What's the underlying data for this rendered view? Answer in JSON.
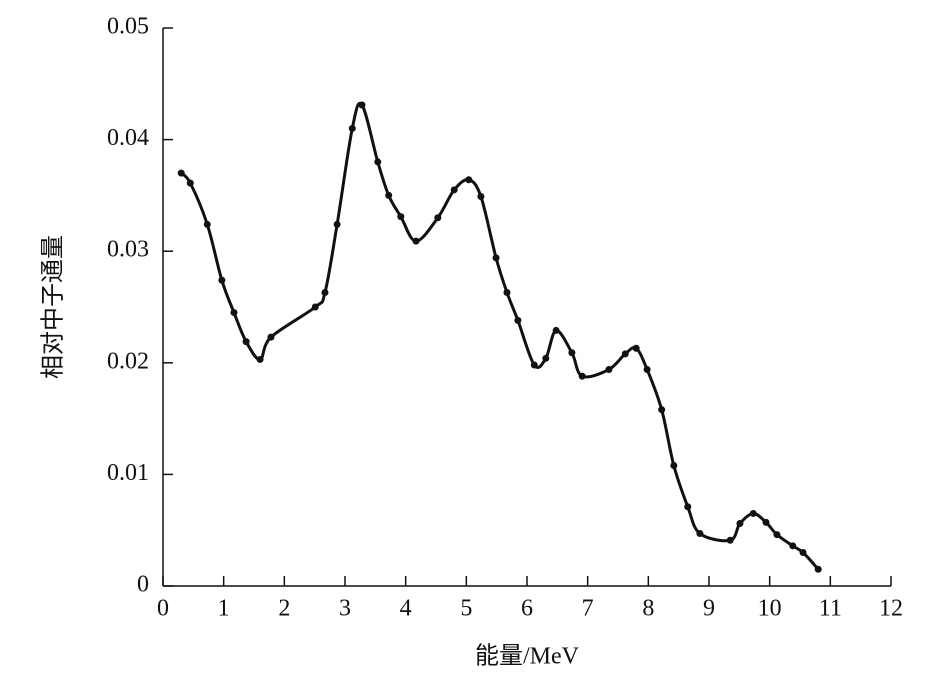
{
  "chart_data": {
    "type": "scatter",
    "line": true,
    "color": "#111111",
    "x_label": "能量/MeV",
    "y_label": "相对中子通量",
    "x": [
      0.3,
      0.45,
      0.73,
      0.97,
      1.17,
      1.37,
      1.6,
      1.78,
      2.51,
      2.67,
      2.87,
      3.12,
      3.28,
      3.54,
      3.72,
      3.92,
      4.17,
      4.53,
      4.8,
      5.04,
      5.24,
      5.49,
      5.67,
      5.85,
      6.12,
      6.31,
      6.48,
      6.74,
      6.91,
      7.35,
      7.62,
      7.8,
      7.98,
      8.22,
      8.42,
      8.65,
      8.85,
      9.35,
      9.51,
      9.73,
      9.94,
      10.12,
      10.38,
      10.55,
      10.8
    ],
    "values": [
      0.037,
      0.0361,
      0.0324,
      0.0274,
      0.0245,
      0.0219,
      0.0203,
      0.0223,
      0.025,
      0.0263,
      0.0324,
      0.041,
      0.0431,
      0.038,
      0.035,
      0.0331,
      0.0309,
      0.033,
      0.0355,
      0.0364,
      0.0349,
      0.0294,
      0.0263,
      0.0238,
      0.0198,
      0.0204,
      0.0229,
      0.0209,
      0.0188,
      0.0194,
      0.0208,
      0.0213,
      0.0194,
      0.0158,
      0.0108,
      0.0071,
      0.0047,
      0.0041,
      0.0056,
      0.0065,
      0.0057,
      0.0046,
      0.0036,
      0.003,
      0.0015
    ],
    "xlim": [
      0,
      12
    ],
    "xticks": [
      0,
      1,
      2,
      3,
      4,
      5,
      6,
      7,
      8,
      9,
      10,
      11,
      12
    ],
    "ylim": [
      0,
      0.05
    ],
    "yticks": [
      0,
      0.01,
      0.02,
      0.03,
      0.04,
      0.05
    ]
  }
}
